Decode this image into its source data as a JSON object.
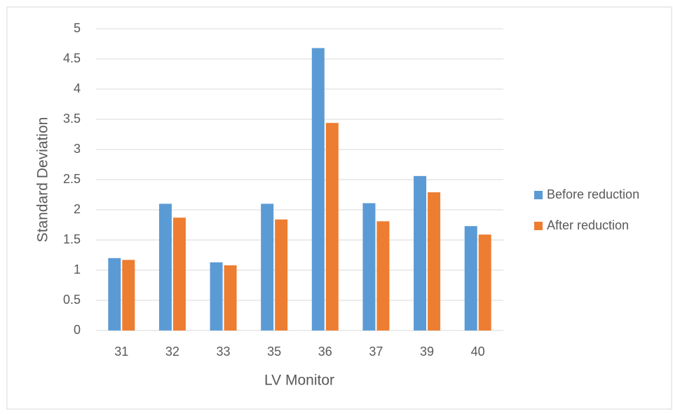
{
  "chart_data": {
    "type": "bar",
    "x_label": "LV Monitor",
    "y_label": "Standard Deviation",
    "categories": [
      "31",
      "32",
      "33",
      "35",
      "36",
      "37",
      "39",
      "40"
    ],
    "series": [
      {
        "name": "Before reduction",
        "color": "#5b9bd5",
        "values": [
          1.2,
          2.1,
          1.13,
          2.1,
          4.68,
          2.11,
          2.56,
          1.73
        ]
      },
      {
        "name": "After reduction",
        "color": "#ed7d31",
        "values": [
          1.17,
          1.87,
          1.08,
          1.84,
          3.44,
          1.81,
          2.29,
          1.59
        ]
      }
    ],
    "ylim": [
      0,
      5
    ],
    "yticks": [
      0,
      0.5,
      1,
      1.5,
      2,
      2.5,
      3,
      3.5,
      4,
      4.5,
      5
    ],
    "grid": true,
    "legend": "right"
  }
}
